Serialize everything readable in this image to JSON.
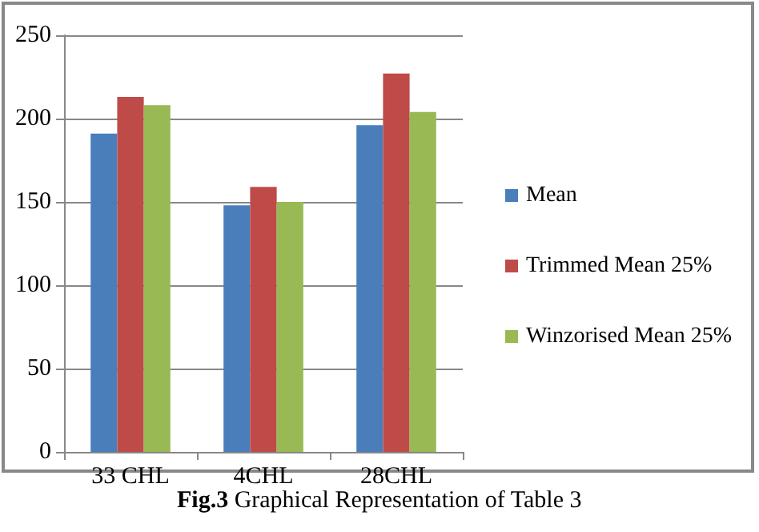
{
  "chart_data": {
    "type": "bar",
    "categories": [
      "33 CHL",
      "4CHL",
      "28CHL"
    ],
    "series": [
      {
        "name": "Mean",
        "color": "#4a7ebb",
        "values": [
          191,
          148,
          196
        ]
      },
      {
        "name": "Trimmed Mean 25%",
        "color": "#be4b48",
        "values": [
          213,
          159,
          227
        ]
      },
      {
        "name": "Winzorised Mean 25%",
        "color": "#98b954",
        "values": [
          208,
          150,
          204
        ]
      }
    ],
    "ylim": [
      0,
      250
    ],
    "yticks": [
      0,
      50,
      100,
      150,
      200,
      250
    ],
    "grid": "y",
    "legend": "right",
    "annotations": [
      "Fig.3 Graphical Representation of Table 3"
    ]
  }
}
